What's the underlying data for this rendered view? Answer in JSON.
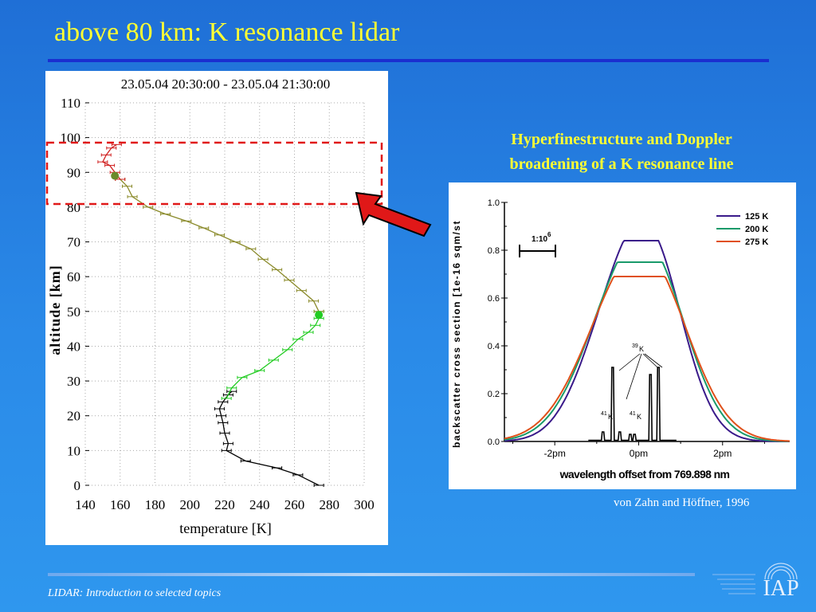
{
  "slide": {
    "title": "above 80 km: K resonance lidar",
    "hyperfine_text_line1": "Hyperfinestructure and Doppler",
    "hyperfine_text_line2": "broadening of a K resonance line",
    "credit": "von Zahn and Höffner, 1996",
    "footer": "LIDAR: Introduction to selected topics",
    "logo_text": "IAP",
    "colors": {
      "title": "#ffff33",
      "background": "#2a8ae8",
      "highlight_box": "#e01818",
      "arrow": "#e01818"
    }
  },
  "chart_data": [
    {
      "type": "line",
      "title": "23.05.04 20:30:00 - 23.05.04 21:30:00",
      "xlabel": "temperature [K]",
      "ylabel": "altitude [km]",
      "xlim": [
        140,
        300
      ],
      "ylim": [
        0,
        110
      ],
      "x_ticks": [
        "140",
        "160",
        "180",
        "200",
        "220",
        "240",
        "260",
        "280",
        "300"
      ],
      "y_ticks": [
        "0",
        "10",
        "20",
        "30",
        "40",
        "50",
        "60",
        "70",
        "80",
        "90",
        "100",
        "110"
      ],
      "grid": true,
      "series": [
        {
          "color": "#000000",
          "points": [
            [
              274,
              0
            ],
            [
              262,
              3
            ],
            [
              250,
              5
            ],
            [
              232,
              7
            ],
            [
              221,
              10
            ],
            [
              222,
              12
            ],
            [
              220,
              15
            ],
            [
              219,
              18
            ],
            [
              218,
              20
            ],
            [
              217,
              22
            ],
            [
              219,
              24
            ],
            [
              222,
              26
            ],
            [
              224,
              27
            ]
          ]
        },
        {
          "color": "#22cc22",
          "points": [
            [
              221,
              25
            ],
            [
              224,
              28
            ],
            [
              230,
              31
            ],
            [
              240,
              33
            ],
            [
              248,
              36
            ],
            [
              256,
              39
            ],
            [
              262,
              42
            ],
            [
              268,
              44
            ],
            [
              272,
              46
            ],
            [
              274,
              48
            ],
            [
              274,
              50
            ]
          ]
        },
        {
          "color": "#8a8a2a",
          "points": [
            [
              274,
              50
            ],
            [
              271,
              53
            ],
            [
              264,
              56
            ],
            [
              257,
              59
            ],
            [
              250,
              62
            ],
            [
              242,
              65
            ],
            [
              235,
              68
            ],
            [
              226,
              70
            ],
            [
              217,
              72
            ],
            [
              208,
              74
            ],
            [
              198,
              76
            ],
            [
              186,
              78
            ],
            [
              176,
              80
            ],
            [
              167,
              83
            ],
            [
              164,
              86
            ],
            [
              160,
              88
            ]
          ]
        },
        {
          "color": "#d02020",
          "points": [
            [
              160,
              88
            ],
            [
              157,
              90
            ],
            [
              154,
              92
            ],
            [
              150,
              93
            ],
            [
              152,
              95
            ],
            [
              155,
              97
            ],
            [
              158,
              98
            ]
          ]
        }
      ],
      "markers": [
        {
          "x": 274,
          "y": 49,
          "color": "#22cc22"
        },
        {
          "x": 157,
          "y": 89,
          "color": "#6a8a2a"
        }
      ],
      "highlight_range_km": [
        81,
        98
      ]
    },
    {
      "type": "line",
      "xlabel": "wavelength offset from 769.898 nm",
      "ylabel": "backscatter cross section [1e-16 sqm/st",
      "x_ticks": [
        "-2pm",
        "0pm",
        "2pm"
      ],
      "xlim": [
        -3.2,
        3.6
      ],
      "ylim": [
        0,
        1.0
      ],
      "y_ticks": [
        "0.0",
        "0.2",
        "0.4",
        "0.6",
        "0.8",
        "1.0"
      ],
      "scale_label": "1:10",
      "scale_exp": "6",
      "annotations": {
        "k39": "39",
        "k39_sym": "K",
        "k41a": "41",
        "k41a_sym": "K",
        "k41b": "41",
        "k41b_sym": "K"
      },
      "series": [
        {
          "name": "125 K",
          "color": "#3a1a8a",
          "peak": 0.84,
          "sigma": 1.05
        },
        {
          "name": "200 K",
          "color": "#1a9a6a",
          "peak": 0.75,
          "sigma": 1.2
        },
        {
          "name": "275 K",
          "color": "#e0501a",
          "peak": 0.69,
          "sigma": 1.3
        }
      ]
    }
  ]
}
